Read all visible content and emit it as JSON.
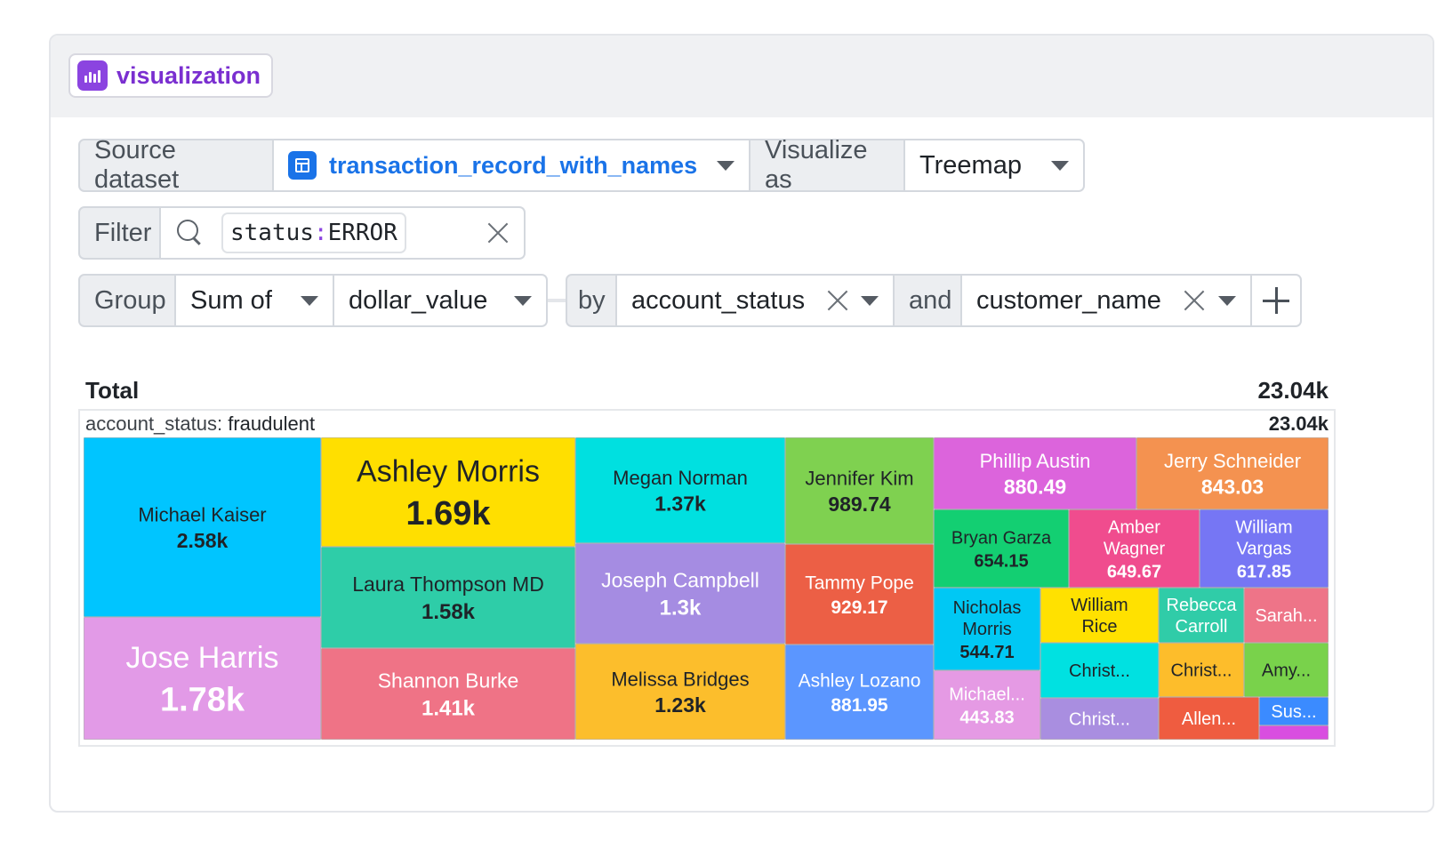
{
  "badge": {
    "label": "visualization",
    "icon": "bar-chart-icon"
  },
  "source": {
    "label": "Source dataset",
    "dataset": "transaction_record_with_names",
    "dataset_icon": "table-icon",
    "visualize_label": "Visualize as",
    "visualize_value": "Treemap"
  },
  "filter": {
    "label": "Filter",
    "key": "status",
    "sep": ":",
    "value": "ERROR"
  },
  "group": {
    "label": "Group",
    "agg": "Sum of",
    "field": "dollar_value",
    "by": "by",
    "dim1": "account_status",
    "and": "and",
    "dim2": "customer_name"
  },
  "colors": {
    "accent": "#8b44e0",
    "link": "#1a73e8"
  },
  "chart_data": {
    "type": "treemap",
    "total_label": "Total",
    "total_value": "23.04k",
    "group_key": "account_status: ",
    "group_name": "fraudulent",
    "group_value": "23.04k",
    "items": [
      {
        "name": "Michael Kaiser",
        "label": "2.58k",
        "value": 2580,
        "color": "#00c5ff"
      },
      {
        "name": "Jose Harris",
        "label": "1.78k",
        "value": 1780,
        "color": "#e29ae7"
      },
      {
        "name": "Ashley Morris",
        "label": "1.69k",
        "value": 1690,
        "color": "#ffdf00"
      },
      {
        "name": "Laura Thompson MD",
        "label": "1.58k",
        "value": 1580,
        "color": "#2ecda8"
      },
      {
        "name": "Shannon Burke",
        "label": "1.41k",
        "value": 1410,
        "color": "#ef7386"
      },
      {
        "name": "Megan Norman",
        "label": "1.37k",
        "value": 1370,
        "color": "#00e0e0"
      },
      {
        "name": "Joseph Campbell",
        "label": "1.3k",
        "value": 1300,
        "color": "#a58ce2"
      },
      {
        "name": "Melissa Bridges",
        "label": "1.23k",
        "value": 1230,
        "color": "#fcbe2c"
      },
      {
        "name": "Jennifer Kim",
        "label": "989.74",
        "value": 989.74,
        "color": "#7fd150"
      },
      {
        "name": "Tammy Pope",
        "label": "929.17",
        "value": 929.17,
        "color": "#ec5f45"
      },
      {
        "name": "Ashley Lozano",
        "label": "881.95",
        "value": 881.95,
        "color": "#5b96ff"
      },
      {
        "name": "Phillip Austin",
        "label": "880.49",
        "value": 880.49,
        "color": "#dc64dc"
      },
      {
        "name": "Jerry Schneider",
        "label": "843.03",
        "value": 843.03,
        "color": "#f49250"
      },
      {
        "name": "Bryan Garza",
        "label": "654.15",
        "value": 654.15,
        "color": "#13cf72"
      },
      {
        "name": "Amber Wagner",
        "label": "649.67",
        "value": 649.67,
        "color": "#f04c8e"
      },
      {
        "name": "William Vargas",
        "label": "617.85",
        "value": 617.85,
        "color": "#7676f4"
      },
      {
        "name": "Nicholas Morris",
        "label": "544.71",
        "value": 544.71,
        "color": "#00c8f4"
      },
      {
        "name": "Michael...",
        "label": "443.83",
        "value": 443.83,
        "color": "#e59ae4"
      },
      {
        "name": "William Rice",
        "label": "",
        "value": 430,
        "color": "#ffe100"
      },
      {
        "name": "Rebecca Carroll",
        "label": "",
        "value": 420,
        "color": "#30cca8"
      },
      {
        "name": "Sarah...",
        "label": "",
        "value": 300,
        "color": "#ee7488"
      },
      {
        "name": "Christ...",
        "label": "",
        "value": 220,
        "color": "#00e1e1"
      },
      {
        "name": "Christ...",
        "label": "",
        "value": 220,
        "color": "#a98ee0"
      },
      {
        "name": "Christ...",
        "label": "",
        "value": 210,
        "color": "#fdbd2b"
      },
      {
        "name": "Amy...",
        "label": "",
        "value": 200,
        "color": "#79d24b"
      },
      {
        "name": "Allen...",
        "label": "",
        "value": 190,
        "color": "#ef5c40"
      },
      {
        "name": "Sus...",
        "label": "",
        "value": 100,
        "color": "#3b8bff"
      },
      {
        "name": "",
        "label": "",
        "value": 30,
        "color": "#d94ee0"
      }
    ]
  }
}
